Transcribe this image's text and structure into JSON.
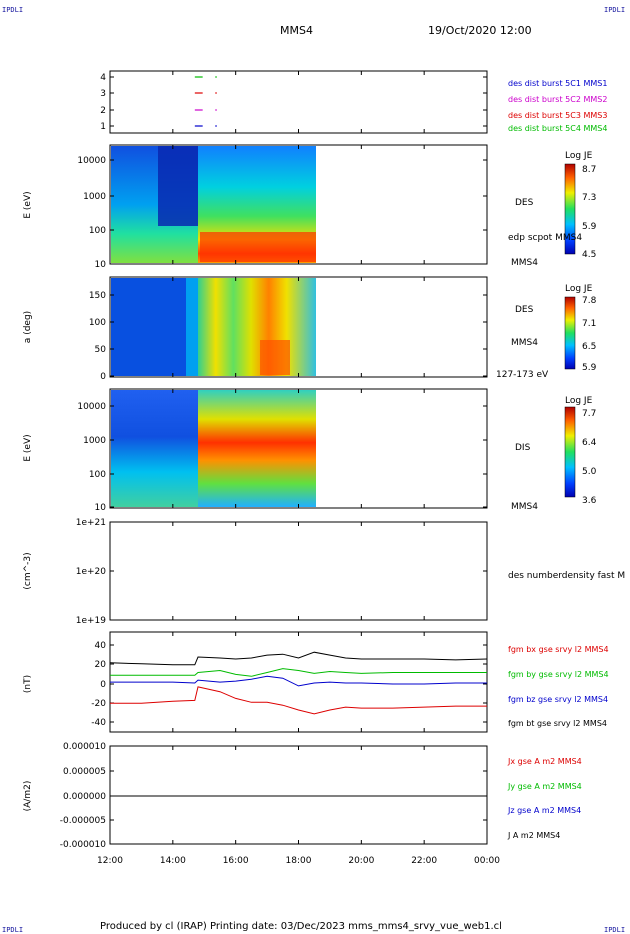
{
  "header": {
    "corner_left_top": "IPDLI",
    "corner_right_top": "IPDLI",
    "corner_left_bottom": "IPDLI",
    "corner_right_bottom": "IPDLI",
    "spacecraft": "MMS4",
    "datetime": "19/Oct/2020 12:00"
  },
  "footer": "Produced by cl (IRAP)   Printing date: 03/Dec/2023   mms_mms4_srvy_vue_web1.cl",
  "colors": {
    "mms1": "#0000cc",
    "mms2": "#cc00cc",
    "mms3": "#dd0000",
    "mms4": "#00bb00",
    "bx": "#dd0000",
    "by": "#00bb00",
    "bz": "#0000cc",
    "bt": "#000000"
  },
  "chart_data": [
    {
      "type": "scatter",
      "panel": "coverage",
      "yticks": [
        "4",
        "3",
        "2",
        "1"
      ],
      "ylim": [
        0.5,
        4.5
      ],
      "series": [
        {
          "name": "des dist burst 5C1 MMS1",
          "y": 1,
          "color": "#0000cc"
        },
        {
          "name": "des dist burst 5C2 MMS2",
          "y": 2,
          "color": "#cc00cc"
        },
        {
          "name": "des dist burst 5C3 MMS3",
          "y": 3,
          "color": "#dd0000"
        },
        {
          "name": "des dist burst 5C4 MMS4",
          "y": 4,
          "color": "#00bb00"
        }
      ],
      "segments_hours": [
        [
          14.7,
          14.95
        ],
        [
          15.35,
          15.4
        ]
      ]
    },
    {
      "type": "heatmap",
      "panel": "des-energy",
      "ylabel": "E (eV)",
      "ylog": true,
      "yticks": [
        "10000",
        "1000",
        "100",
        "10"
      ],
      "colorbar": {
        "title": "Log JE",
        "ticks": [
          "8.7",
          "7.3",
          "5.9",
          "4.5"
        ]
      },
      "right_labels": [
        "DES",
        "edp scpot MMS4",
        "MMS4"
      ],
      "data_end_hour": 18.6
    },
    {
      "type": "heatmap",
      "panel": "des-pitch",
      "ylabel": "a (deg)",
      "yticks": [
        "150",
        "100",
        "50",
        "0"
      ],
      "ylim": [
        0,
        180
      ],
      "colorbar": {
        "title": "Log JE",
        "ticks": [
          "7.8",
          "7.1",
          "6.5",
          "5.9"
        ]
      },
      "right_labels": [
        "DES",
        "MMS4",
        "127-173 eV"
      ],
      "data_end_hour": 18.6
    },
    {
      "type": "heatmap",
      "panel": "dis-energy",
      "ylabel": "E (eV)",
      "ylog": true,
      "yticks": [
        "10000",
        "1000",
        "100",
        "10"
      ],
      "colorbar": {
        "title": "Log JE",
        "ticks": [
          "7.7",
          "6.4",
          "5.0",
          "3.6"
        ]
      },
      "right_labels": [
        "DIS",
        "MMS4"
      ],
      "data_end_hour": 18.6
    },
    {
      "type": "line",
      "panel": "density",
      "ylabel": "(cm^-3)",
      "yticks": [
        "1e+21",
        "1e+20",
        "1e+19"
      ],
      "right_labels": [
        "des numberdensity fast M"
      ]
    },
    {
      "type": "line",
      "panel": "bfield",
      "ylabel": "(nT)",
      "yticks": [
        "40",
        "20",
        "0",
        "-20",
        "-40"
      ],
      "ylim": [
        -45,
        45
      ],
      "series": [
        {
          "name": "fgm bx gse srvy l2 MMS4",
          "color": "#dd0000"
        },
        {
          "name": "fgm by gse srvy l2 MMS4",
          "color": "#00bb00"
        },
        {
          "name": "fgm bz gse srvy l2 MMS4",
          "color": "#0000cc"
        },
        {
          "name": "fgm bt gse srvy l2 MMS4",
          "color": "#000000"
        }
      ],
      "x_hours": [
        12,
        13,
        14,
        14.7,
        14.8,
        15.5,
        16,
        16.5,
        17,
        17.5,
        18,
        18.5,
        19,
        19.5,
        20,
        21,
        22,
        23,
        24
      ],
      "bt": [
        22,
        21,
        20,
        20,
        28,
        27,
        26,
        27,
        30,
        31,
        27,
        33,
        30,
        27,
        26,
        26,
        26,
        25,
        26
      ],
      "by": [
        9,
        9,
        9,
        9,
        12,
        14,
        10,
        8,
        12,
        16,
        14,
        11,
        13,
        12,
        11,
        12,
        12,
        12,
        12
      ],
      "bz": [
        2,
        2,
        2,
        1,
        4,
        2,
        3,
        5,
        8,
        6,
        -2,
        1,
        2,
        1,
        1,
        0,
        0,
        1,
        1
      ],
      "bx": [
        -20,
        -20,
        -18,
        -17,
        -3,
        -8,
        -15,
        -19,
        -19,
        -22,
        -27,
        -31,
        -27,
        -24,
        -25,
        -25,
        -24,
        -23,
        -23
      ]
    },
    {
      "type": "line",
      "panel": "current",
      "ylabel": "(A/m2)",
      "yticks": [
        "0.000010",
        "0.000005",
        "0.000000",
        "-0.000005",
        "-0.000010"
      ],
      "ylim": [
        -1e-05,
        1e-05
      ],
      "series": [
        {
          "name": "Jx gse A m2 MMS4",
          "color": "#dd0000"
        },
        {
          "name": "Jy gse A m2 MMS4",
          "color": "#00bb00"
        },
        {
          "name": "Jz gse A m2 MMS4",
          "color": "#0000cc"
        },
        {
          "name": "J A m2 MMS4",
          "color": "#000000"
        }
      ]
    }
  ],
  "xaxis": {
    "ticks": [
      "12:00",
      "14:00",
      "16:00",
      "18:00",
      "20:00",
      "22:00",
      "00:00"
    ],
    "range_hours": [
      12,
      24
    ]
  }
}
